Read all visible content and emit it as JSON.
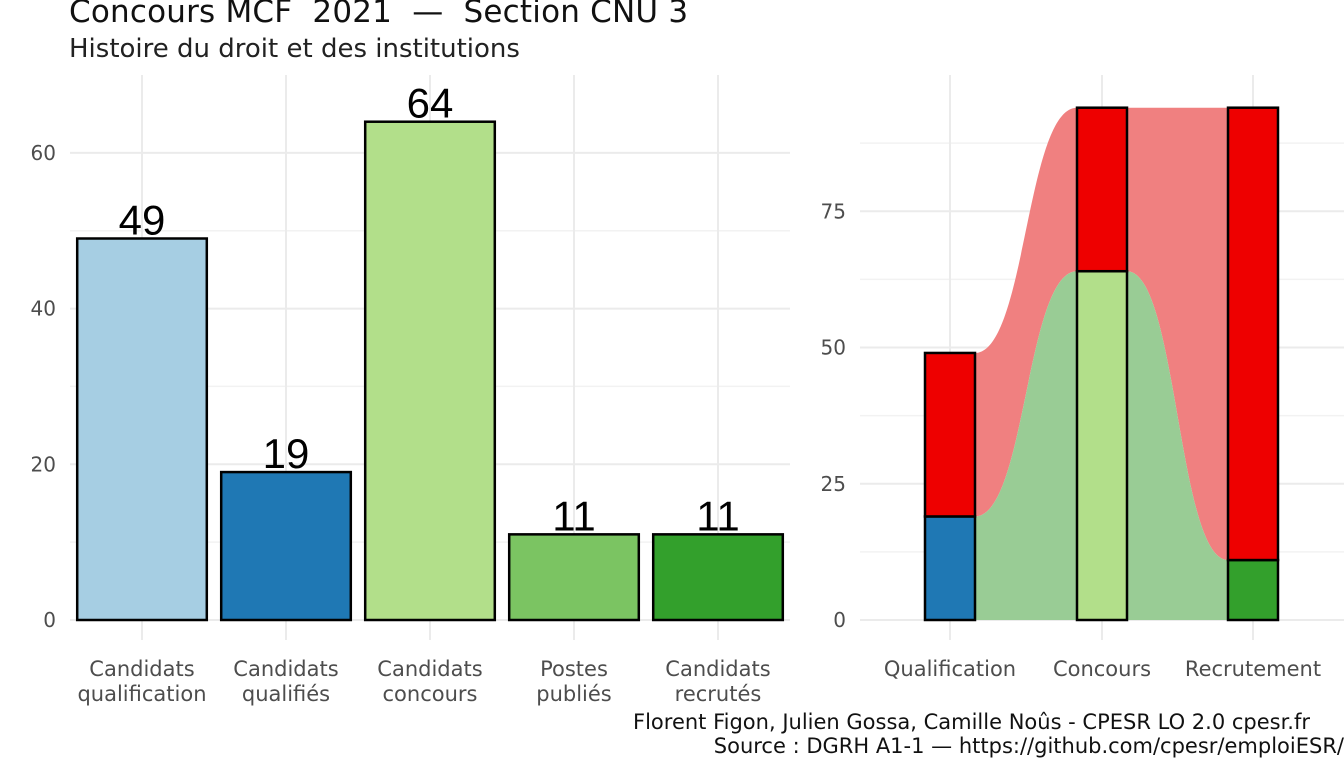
{
  "header": {
    "title": "Concours MCF  2021  —  Section CNU 3",
    "subtitle": "Histoire du droit et des institutions"
  },
  "caption": {
    "line1": "Florent Figon, Julien Gossa, Camille Noûs - CPESR LO 2.0 cpesr.fr",
    "line2": "Source : DGRH A1-1 — https://github.com/cpesr/emploiESR/"
  },
  "chart_data": [
    {
      "type": "bar",
      "categories": [
        [
          "Candidats",
          "qualification"
        ],
        [
          "Candidats",
          "qualifiés"
        ],
        [
          "Candidats",
          "concours"
        ],
        [
          "Postes",
          "publiés"
        ],
        [
          "Candidats",
          "recrutés"
        ]
      ],
      "values": [
        49,
        19,
        64,
        11,
        11
      ],
      "colors": [
        "#a6cee3",
        "#1f78b4",
        "#b2df8a",
        "#7bc462",
        "#33a02c"
      ],
      "ylim": [
        0,
        70
      ],
      "yticks": [
        0,
        20,
        40,
        60
      ],
      "grid": true,
      "data_labels": true
    },
    {
      "type": "bar",
      "stacked": true,
      "categories": [
        "Qualification",
        "Concours",
        "Recrutement"
      ],
      "ylim": [
        0,
        100
      ],
      "yticks": [
        0,
        25,
        50,
        75
      ],
      "grid": true,
      "stacks": [
        {
          "category": "Qualification",
          "segments": [
            {
              "value": 19,
              "color": "#1f78b4"
            },
            {
              "value": 30,
              "color": "#ee0000"
            }
          ]
        },
        {
          "category": "Concours",
          "segments": [
            {
              "value": 64,
              "color": "#b2df8a"
            },
            {
              "value": 30,
              "color": "#ee0000"
            }
          ]
        },
        {
          "category": "Recrutement",
          "segments": [
            {
              "value": 11,
              "color": "#33a02c"
            },
            {
              "value": 83,
              "color": "#ee0000"
            }
          ]
        }
      ],
      "flows": [
        {
          "color": "#f08080",
          "between": [
            "Qualification",
            "Concours",
            "Recrutement"
          ],
          "bottom": [
            19,
            64,
            11
          ],
          "top": [
            49,
            94,
            94
          ]
        },
        {
          "color": "#99cc95",
          "between": [
            "Qualification",
            "Concours",
            "Recrutement"
          ],
          "bottom": [
            0,
            0,
            0
          ],
          "top": [
            19,
            64,
            11
          ]
        }
      ]
    }
  ]
}
